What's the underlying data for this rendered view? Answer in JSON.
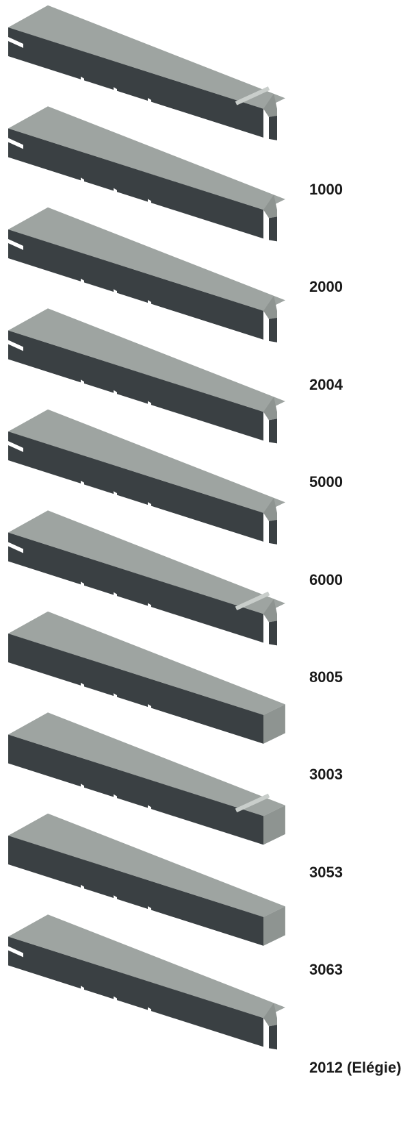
{
  "colors": {
    "top_face": "#9ea4a1",
    "side_face": "#3a4043",
    "end_face": "#8e9491",
    "edge_highlight": "#c9cecb",
    "label": "#1a1a1a"
  },
  "profiles": [
    {
      "code": "1000",
      "edge": "rounded-step",
      "groove": true
    },
    {
      "code": "2000",
      "edge": "chamfer-step",
      "groove": true
    },
    {
      "code": "2004",
      "edge": "chamfer-step",
      "groove": true
    },
    {
      "code": "5000",
      "edge": "square-step",
      "groove": true
    },
    {
      "code": "6000",
      "edge": "square-step",
      "groove": true
    },
    {
      "code": "8005",
      "edge": "bullnose-step",
      "groove": true
    },
    {
      "code": "3003",
      "edge": "square",
      "groove": false
    },
    {
      "code": "3053",
      "edge": "rounded",
      "groove": false
    },
    {
      "code": "3063",
      "edge": "chamfer",
      "groove": false
    },
    {
      "code": "2012 (Elégie)",
      "edge": "slope-step",
      "groove": true
    }
  ]
}
